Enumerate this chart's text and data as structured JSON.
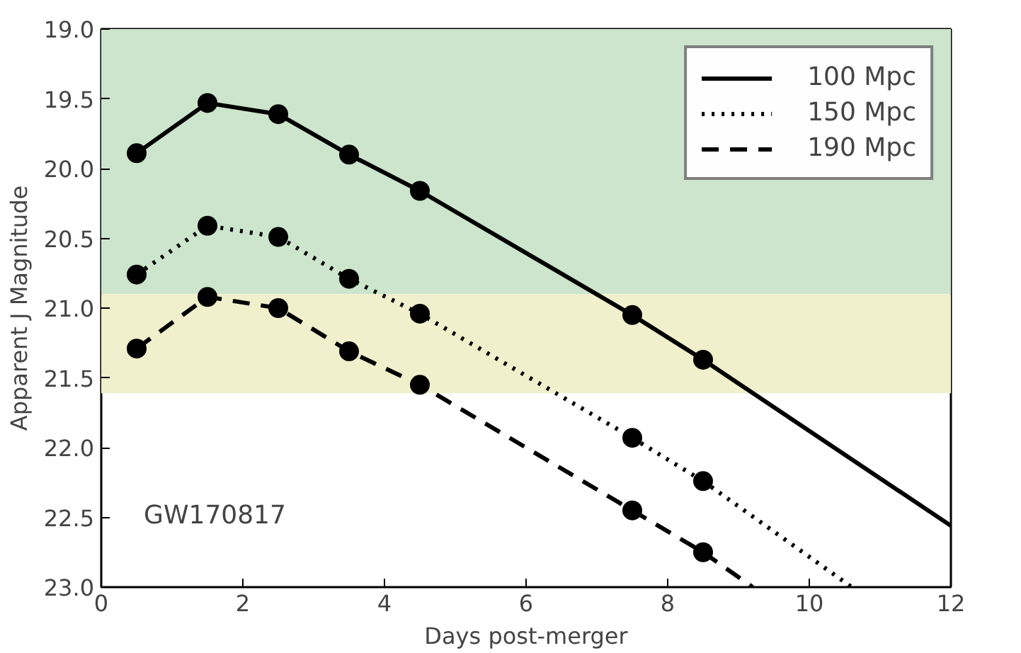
{
  "chart_data": {
    "type": "line",
    "xlabel": "Days post-merger",
    "ylabel": "Apparent J Magnitude",
    "xlim": [
      0,
      12
    ],
    "xticks": [
      0,
      2,
      4,
      6,
      8,
      10,
      12
    ],
    "ylim": [
      23.0,
      19.0
    ],
    "yticks": [
      {
        "value": 19.0,
        "label": "19.0"
      },
      {
        "value": 19.5,
        "label": "19.5"
      },
      {
        "value": 20.0,
        "label": "20.0"
      },
      {
        "value": 20.5,
        "label": "20.5"
      },
      {
        "value": 21.0,
        "label": "21.0"
      },
      {
        "value": 21.5,
        "label": "21.5"
      },
      {
        "value": 22.0,
        "label": "22.0"
      },
      {
        "value": 22.5,
        "label": "22.5"
      },
      {
        "value": 23.0,
        "label": "23.0"
      }
    ],
    "grid": false,
    "legend": "top right",
    "marker": "circle",
    "bands": [
      {
        "axis": "y",
        "from": 19.0,
        "to": 20.9,
        "color": "#cce5cc"
      },
      {
        "axis": "y",
        "from": 20.9,
        "to": 21.61,
        "color": "#f0f0cc"
      }
    ],
    "annotations": [
      "GW170817"
    ],
    "series": [
      {
        "name": "100 Mpc",
        "color": "#000000",
        "line_style": "solid",
        "x": [
          0.5,
          1.5,
          2.5,
          3.5,
          4.5,
          7.5,
          8.5
        ],
        "values": [
          19.89,
          19.53,
          19.61,
          19.9,
          20.16,
          21.05,
          21.37
        ]
      },
      {
        "name": "150 Mpc",
        "color": "#000000",
        "line_style": "dotted",
        "x": [
          0.5,
          1.5,
          2.5,
          3.5,
          4.5,
          7.5,
          8.5
        ],
        "values": [
          20.76,
          20.41,
          20.49,
          20.79,
          21.04,
          21.93,
          22.24
        ]
      },
      {
        "name": "190 Mpc",
        "color": "#000000",
        "line_style": "dashed",
        "x": [
          0.5,
          1.5,
          2.5,
          3.5,
          4.5,
          7.5,
          8.5
        ],
        "values": [
          21.29,
          20.92,
          21.0,
          21.31,
          21.55,
          22.45,
          22.75
        ]
      },
      {
        "color": "#000000",
        "line_style": "solid",
        "marker": "none",
        "x": [
          8.5,
          12
        ],
        "values": [
          21.37,
          22.56
        ]
      },
      {
        "color": "#000000",
        "line_style": "dotted",
        "marker": "none",
        "x": [
          8.5,
          10.6
        ],
        "values": [
          22.24,
          23.0
        ]
      },
      {
        "color": "#000000",
        "line_style": "dashed",
        "marker": "none",
        "x": [
          8.5,
          9.2
        ],
        "values": [
          22.75,
          23.0
        ]
      }
    ]
  }
}
